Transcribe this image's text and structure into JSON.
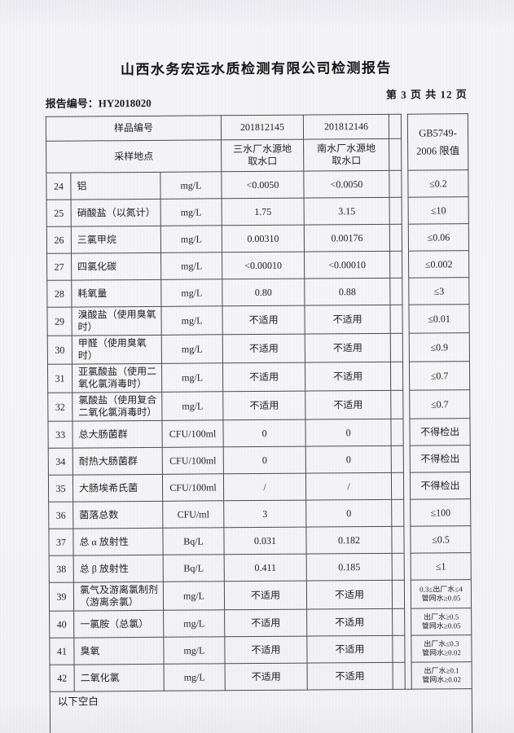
{
  "document": {
    "title": "山西水务宏远水质检测有限公司检测报告",
    "report_no": "报告编号：HY2018020",
    "page_info": "第 3 页 共 12 页",
    "footer_note": "以下空白"
  },
  "table": {
    "header": {
      "sample_id_label": "样品编号",
      "sampling_site_label": "采样地点",
      "samples": [
        {
          "id": "201812145",
          "site": "三水厂水源地取水口"
        },
        {
          "id": "201812146",
          "site": "南水厂水源地取水口"
        }
      ],
      "limit_header": [
        "GB5749-",
        "2006 限值"
      ]
    },
    "rows": [
      {
        "no": "24",
        "name": "铝",
        "unit": "mg/L",
        "v1": "<0.0050",
        "v2": "<0.0050",
        "limit": [
          "≤0.2"
        ]
      },
      {
        "no": "25",
        "name": "硝酸盐（以氮计）",
        "unit": "mg/L",
        "v1": "1.75",
        "v2": "3.15",
        "limit": [
          "≤10"
        ]
      },
      {
        "no": "26",
        "name": "三氯甲烷",
        "unit": "mg/L",
        "v1": "0.00310",
        "v2": "0.00176",
        "limit": [
          "≤0.06"
        ]
      },
      {
        "no": "27",
        "name": "四氯化碳",
        "unit": "mg/L",
        "v1": "<0.00010",
        "v2": "<0.00010",
        "limit": [
          "≤0.002"
        ]
      },
      {
        "no": "28",
        "name": "耗氧量",
        "unit": "mg/L",
        "v1": "0.80",
        "v2": "0.88",
        "limit": [
          "≤3"
        ]
      },
      {
        "no": "29",
        "name": "溴酸盐（使用臭氧时）",
        "unit": "mg/L",
        "v1": "不适用",
        "v2": "不适用",
        "limit": [
          "≤0.01"
        ]
      },
      {
        "no": "30",
        "name": "甲醛（使用臭氧时）",
        "unit": "mg/L",
        "v1": "不适用",
        "v2": "不适用",
        "limit": [
          "≤0.9"
        ]
      },
      {
        "no": "31",
        "name": "亚氯酸盐（使用二氧化氯消毒时）",
        "unit": "mg/L",
        "v1": "不适用",
        "v2": "不适用",
        "limit": [
          "≤0.7"
        ]
      },
      {
        "no": "32",
        "name": "氯酸盐（使用复合二氧化氯消毒时）",
        "unit": "mg/L",
        "v1": "不适用",
        "v2": "不适用",
        "limit": [
          "≤0.7"
        ]
      },
      {
        "no": "33",
        "name": "总大肠菌群",
        "unit": "CFU/100ml",
        "v1": "0",
        "v2": "0",
        "limit": [
          "不得检出"
        ]
      },
      {
        "no": "34",
        "name": "耐热大肠菌群",
        "unit": "CFU/100ml",
        "v1": "0",
        "v2": "0",
        "limit": [
          "不得检出"
        ]
      },
      {
        "no": "35",
        "name": "大肠埃希氏菌",
        "unit": "CFU/100ml",
        "v1": "/",
        "v2": "/",
        "limit": [
          "不得检出"
        ]
      },
      {
        "no": "36",
        "name": "菌落总数",
        "unit": "CFU/ml",
        "v1": "3",
        "v2": "0",
        "limit": [
          "≤100"
        ]
      },
      {
        "no": "37",
        "name": "总 α 放射性",
        "unit": "Bq/L",
        "v1": "0.031",
        "v2": "0.182",
        "limit": [
          "≤0.5"
        ]
      },
      {
        "no": "38",
        "name": "总 β 放射性",
        "unit": "Bq/L",
        "v1": "0.411",
        "v2": "0.185",
        "limit": [
          "≤1"
        ]
      },
      {
        "no": "39",
        "name": "氯气及游离氯制剂（游离余氯）",
        "unit": "mg/L",
        "v1": "不适用",
        "v2": "不适用",
        "limit": [
          "0.3≤出厂水≤4",
          "管网水≥0.05"
        ]
      },
      {
        "no": "40",
        "name": "一氯胺（总氯）",
        "unit": "mg/L",
        "v1": "不适用",
        "v2": "不适用",
        "limit": [
          "出厂水≥0.5",
          "管网水≥0.05"
        ]
      },
      {
        "no": "41",
        "name": "臭氧",
        "unit": "mg/L",
        "v1": "不适用",
        "v2": "不适用",
        "limit": [
          "出厂水≤0.3",
          "管网水≥0.02"
        ]
      },
      {
        "no": "42",
        "name": "二氧化氯",
        "unit": "mg/L",
        "v1": "不适用",
        "v2": "不适用",
        "limit": [
          "出厂水≥0.1",
          "管网水≥0.02"
        ]
      }
    ]
  },
  "colors": {
    "paper": "#f4f4f7",
    "ink": "#1e1e1e",
    "border": "#4b4b4b"
  }
}
